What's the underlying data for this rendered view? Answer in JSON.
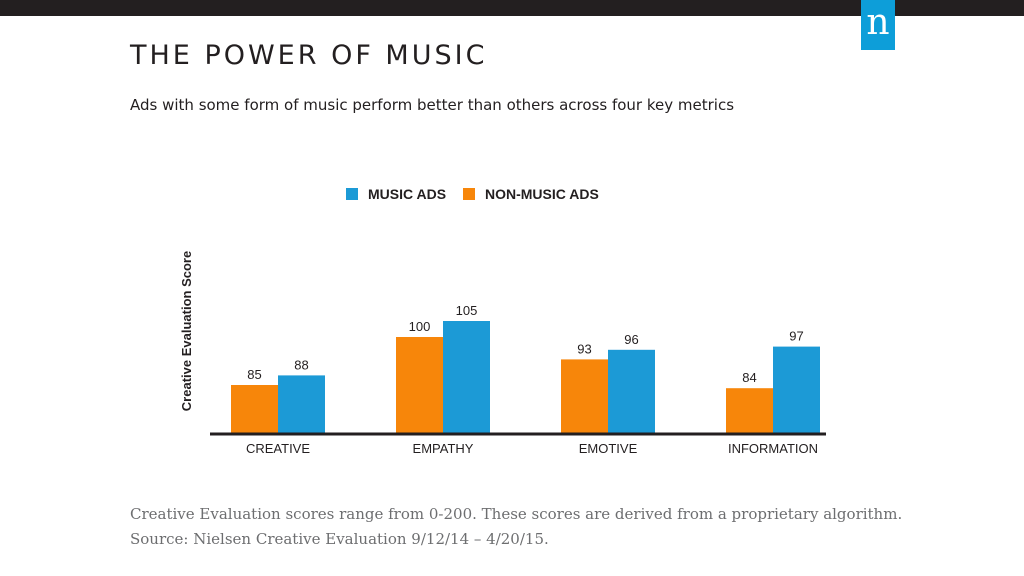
{
  "header": {
    "logo_text": "n",
    "title": "THE POWER OF MUSIC",
    "subtitle": "Ads with some form of music perform better than others across four key metrics"
  },
  "footer": {
    "line1": "Creative Evaluation scores range from 0-200. These scores are derived from a proprietary algorithm.",
    "line2": "Source:  Nielsen Creative Evaluation 9/12/14 – 4/20/15."
  },
  "colors": {
    "music": "#1c9ad6",
    "non_music": "#f7860a",
    "logo": "#0d9ed9"
  },
  "chart_data": {
    "type": "bar",
    "categories": [
      "CREATIVE",
      "EMPATHY",
      "EMOTIVE",
      "INFORMATION"
    ],
    "series": [
      {
        "name": "NON-MUSIC ADS",
        "values": [
          85,
          100,
          93,
          84
        ]
      },
      {
        "name": "MUSIC ADS",
        "values": [
          88,
          105,
          96,
          97
        ]
      }
    ],
    "legend": [
      "MUSIC ADS",
      "NON-MUSIC ADS"
    ],
    "ylabel": "Creative Evaluation Score",
    "ylim": [
      70,
      110
    ],
    "grid": false,
    "legend_position": "top-center"
  }
}
